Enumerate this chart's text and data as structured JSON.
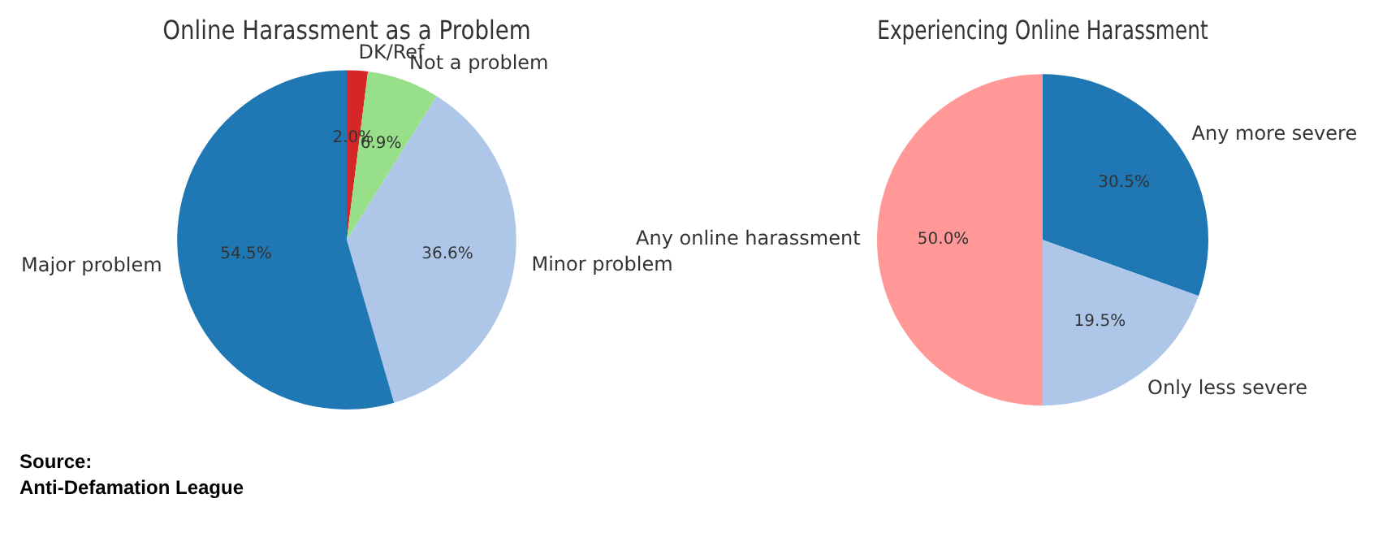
{
  "chart_data": [
    {
      "type": "pie",
      "title": "Online Harassment as a Problem",
      "categories": [
        "DK/Ref",
        "Not a problem",
        "Minor problem",
        "Major problem"
      ],
      "values": [
        2.0,
        6.9,
        36.6,
        54.5
      ],
      "value_labels": [
        "2.0%",
        "6.9%",
        "36.6%",
        "54.5%"
      ],
      "colors": [
        "#d62728",
        "#98df8a",
        "#aec7e8",
        "#1f77b4"
      ],
      "legend": false,
      "annotations": [
        "Source:\nAnti-Defamation League"
      ]
    },
    {
      "type": "pie",
      "title": "Experiencing Online Harassment",
      "categories": [
        "Any more severe",
        "Only less severe",
        "Any online harassment"
      ],
      "values": [
        30.5,
        19.5,
        50.0
      ],
      "value_labels": [
        "30.5%",
        "19.5%",
        "50.0%"
      ],
      "colors": [
        "#1f77b4",
        "#aec7e8",
        "#ff9896"
      ],
      "legend": false
    }
  ]
}
